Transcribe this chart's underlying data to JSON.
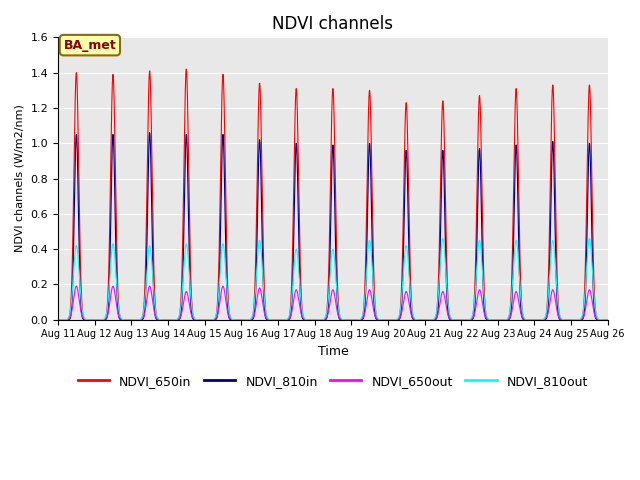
{
  "title": "NDVI channels",
  "xlabel": "Time",
  "ylabel": "NDVI channels (W/m2/nm)",
  "ylim": [
    0,
    1.6
  ],
  "annotation_text": "BA_met",
  "colors": {
    "NDVI_650in": "#ff0000",
    "NDVI_810in": "#00008b",
    "NDVI_650out": "#ff00ff",
    "NDVI_810out": "#00ffff"
  },
  "peak_650in": [
    1.4,
    1.39,
    1.41,
    1.42,
    1.39,
    1.34,
    1.31,
    1.31,
    1.3,
    1.23,
    1.24,
    1.27,
    1.31,
    1.33,
    1.33
  ],
  "peak_810in": [
    1.05,
    1.05,
    1.06,
    1.05,
    1.05,
    1.02,
    1.0,
    0.99,
    1.0,
    0.96,
    0.96,
    0.97,
    0.99,
    1.01,
    1.0
  ],
  "peak_650out": [
    0.19,
    0.19,
    0.19,
    0.16,
    0.19,
    0.18,
    0.17,
    0.17,
    0.17,
    0.16,
    0.16,
    0.17,
    0.16,
    0.17,
    0.17
  ],
  "peak_810out": [
    0.42,
    0.43,
    0.42,
    0.43,
    0.43,
    0.45,
    0.4,
    0.4,
    0.45,
    0.42,
    0.46,
    0.45,
    0.45,
    0.45,
    0.46
  ],
  "background_color": "#e8e8e8",
  "legend_fontsize": 9,
  "title_fontsize": 12,
  "figsize": [
    6.4,
    4.8
  ],
  "dpi": 100
}
